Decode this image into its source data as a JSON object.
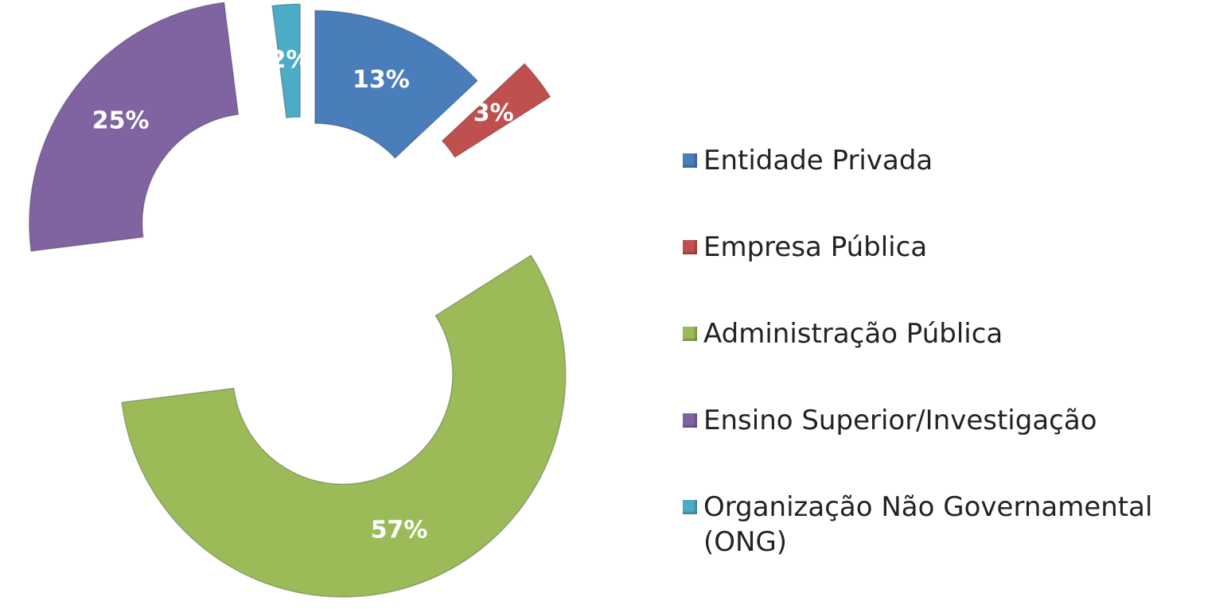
{
  "chart_data": {
    "type": "doughnut",
    "categories": [
      "Entidade Privada",
      "Empresa Pública",
      "Administração Pública",
      "Ensino Superior/Investigação",
      "Organização Não Governamental (ONG)"
    ],
    "values": [
      13,
      3,
      57,
      25,
      2
    ],
    "value_labels": [
      "13%",
      "3%",
      "57%",
      "25%",
      "2%"
    ],
    "colors": [
      "#4a7ebb",
      "#c0504d",
      "#9bbb59",
      "#8064a2",
      "#4bacc6"
    ],
    "legend": "right"
  }
}
